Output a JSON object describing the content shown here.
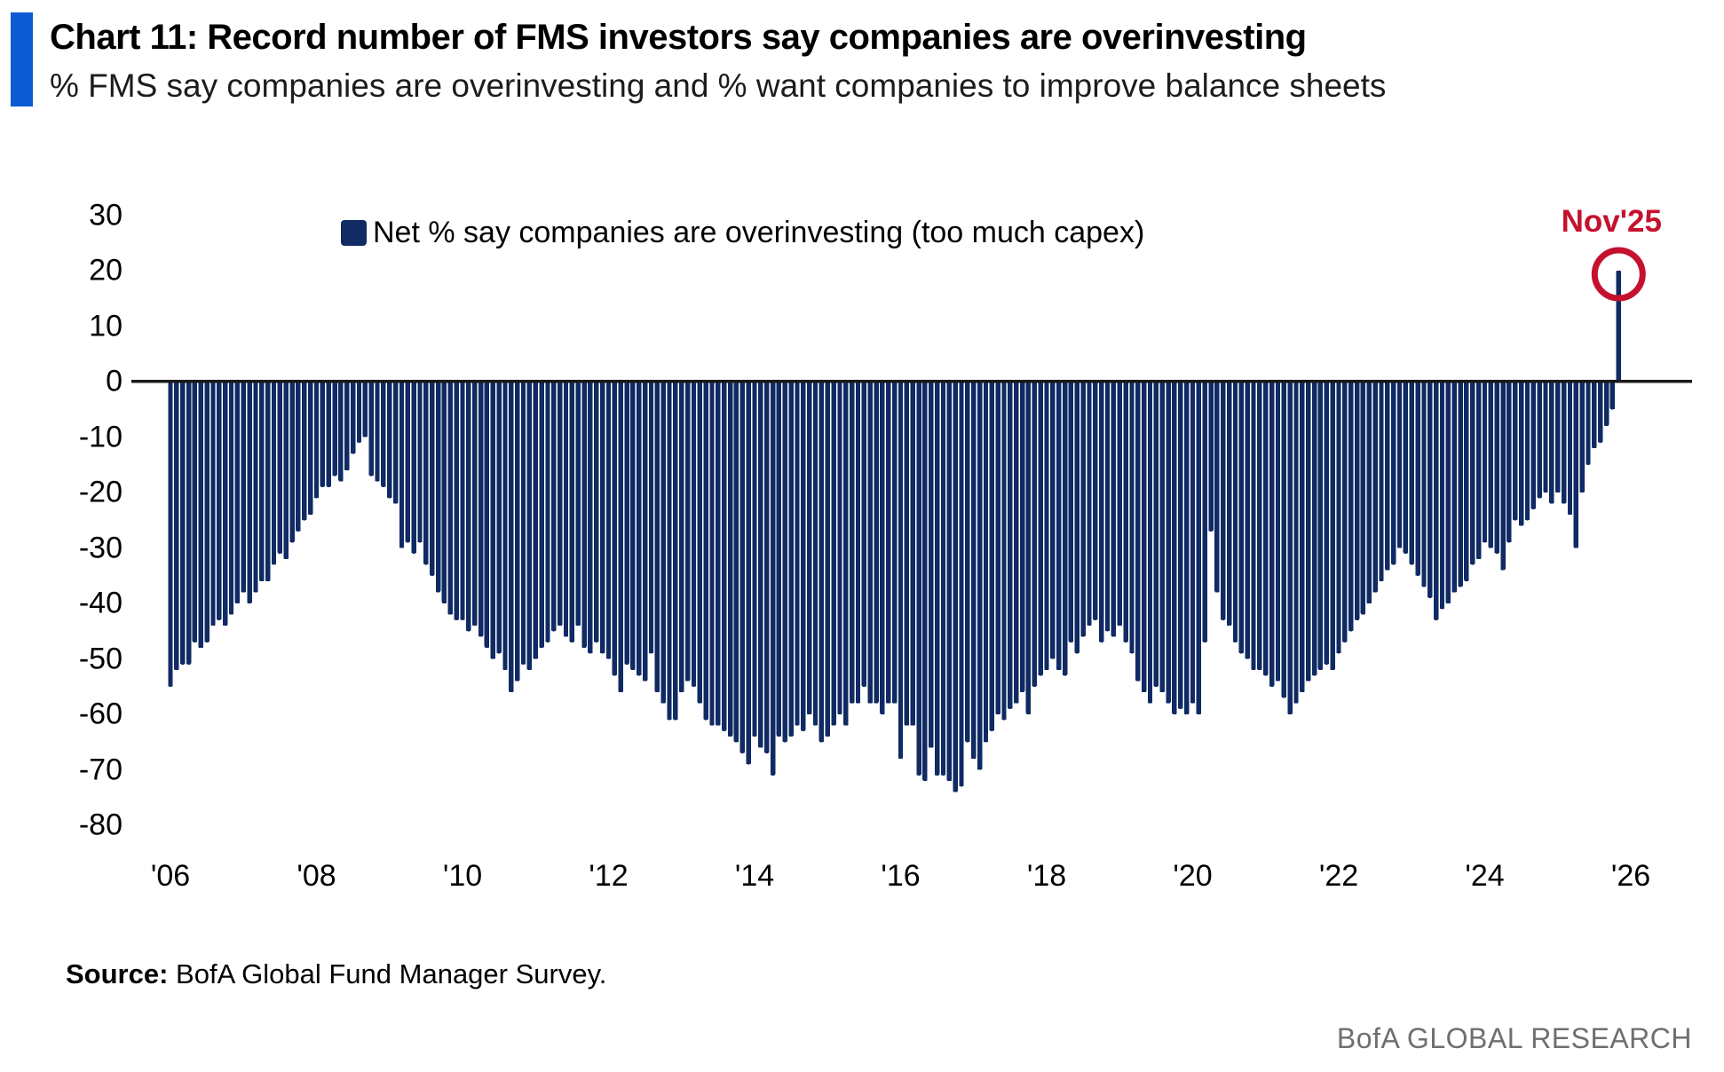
{
  "header": {
    "title": "Chart 11: Record number of FMS investors say companies are overinvesting",
    "subtitle": "% FMS say companies are overinvesting and % want companies to improve balance sheets"
  },
  "legend": {
    "label": "Net % say companies are overinvesting (too much capex)"
  },
  "annotation": {
    "label": "Nov'25"
  },
  "source": {
    "prefix": "Source:",
    "text": " BofA Global Fund Manager Survey."
  },
  "footer": {
    "brand": "BofA GLOBAL RESEARCH"
  },
  "colors": {
    "bar": "#102a63",
    "accent_bar": "#0b5bd3",
    "annotation_red": "#c4122e",
    "axis_line": "#1a1a1a",
    "footer_gray": "#6f6f6f"
  },
  "chart_data": {
    "type": "bar",
    "title": "Net % say companies are overinvesting (too much capex)",
    "frequency": "monthly",
    "x_start": "2006-01",
    "x_end": "2025-11",
    "ylim": [
      -80,
      30
    ],
    "grid": false,
    "legend_position": "top-left-inside",
    "y_ticks": [
      30,
      20,
      10,
      0,
      -10,
      -20,
      -30,
      -40,
      -50,
      -60,
      -70,
      -80
    ],
    "x_tick_labels": [
      "'06",
      "'08",
      "'10",
      "'12",
      "'14",
      "'16",
      "'18",
      "'20",
      "'22",
      "'24",
      "'26"
    ],
    "highlight": {
      "label": "Nov'25",
      "month": "2025-11",
      "value": 20
    },
    "series": [
      {
        "name": "Net % say companies are overinvesting (too much capex)",
        "values": [
          -55,
          -52,
          -51,
          -51,
          -47,
          -48,
          -47,
          -44,
          -43,
          -44,
          -42,
          -40,
          -38,
          -40,
          -38,
          -36,
          -36,
          -33,
          -31,
          -32,
          -29,
          -27,
          -25,
          -24,
          -21,
          -19,
          -19,
          -17,
          -18,
          -16,
          -13,
          -11,
          -10,
          -17,
          -18,
          -19,
          -21,
          -22,
          -30,
          -29,
          -31,
          -29,
          -33,
          -35,
          -38,
          -40,
          -42,
          -43,
          -43,
          -45,
          -44,
          -46,
          -48,
          -50,
          -49,
          -52,
          -56,
          -54,
          -51,
          -52,
          -50,
          -48,
          -47,
          -45,
          -44,
          -46,
          -47,
          -44,
          -48,
          -49,
          -47,
          -49,
          -50,
          -53,
          -56,
          -51,
          -52,
          -53,
          -54,
          -49,
          -56,
          -58,
          -61,
          -61,
          -56,
          -54,
          -55,
          -58,
          -61,
          -62,
          -62,
          -63,
          -64,
          -65,
          -67,
          -69,
          -64,
          -66,
          -67,
          -71,
          -64,
          -65,
          -64,
          -62,
          -63,
          -60,
          -62,
          -65,
          -64,
          -62,
          -60,
          -62,
          -58,
          -58,
          -55,
          -58,
          -58,
          -60,
          -58,
          -58,
          -68,
          -62,
          -62,
          -71,
          -72,
          -66,
          -71,
          -71,
          -72,
          -74,
          -73,
          -65,
          -68,
          -70,
          -65,
          -63,
          -60,
          -61,
          -59,
          -58,
          -56,
          -60,
          -55,
          -53,
          -52,
          -50,
          -52,
          -53,
          -47,
          -49,
          -46,
          -44,
          -43,
          -47,
          -45,
          -46,
          -44,
          -47,
          -49,
          -54,
          -56,
          -58,
          -55,
          -56,
          -58,
          -60,
          -59,
          -60,
          -58,
          -60,
          -47,
          -27,
          -38,
          -43,
          -44,
          -47,
          -49,
          -50,
          -52,
          -52,
          -53,
          -55,
          -54,
          -57,
          -60,
          -58,
          -56,
          -54,
          -53,
          -52,
          -51,
          -52,
          -49,
          -47,
          -45,
          -43,
          -42,
          -40,
          -38,
          -36,
          -34,
          -33,
          -30,
          -31,
          -33,
          -35,
          -37,
          -39,
          -43,
          -41,
          -40,
          -38,
          -37,
          -36,
          -33,
          -32,
          -29,
          -30,
          -31,
          -34,
          -29,
          -25,
          -26,
          -25,
          -23,
          -21,
          -20,
          -22,
          -20,
          -22,
          -24,
          -30,
          -20,
          -15,
          -12,
          -11,
          -8,
          -5,
          20
        ]
      }
    ]
  }
}
